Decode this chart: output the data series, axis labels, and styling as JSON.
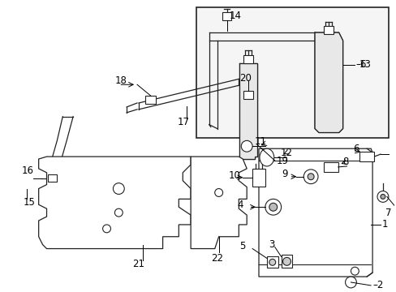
{
  "background_color": "#ffffff",
  "line_color": "#333333",
  "label_fontsize": 8.5,
  "fig_width": 4.89,
  "fig_height": 3.6,
  "dpi": 100
}
